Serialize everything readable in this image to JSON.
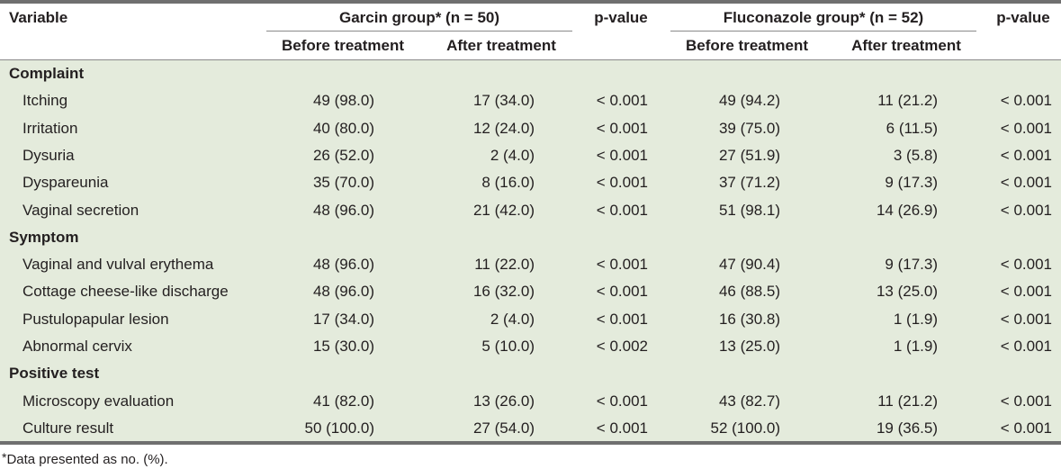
{
  "header": {
    "variable": "Variable",
    "garcin_group": "Garcin group* (n = 50)",
    "fluconazole_group": "Fluconazole group* (n = 52)",
    "pvalue_1": "p-value",
    "pvalue_2": "p-value",
    "before_1": "Before treatment",
    "after_1": "After treatment",
    "before_2": "Before treatment",
    "after_2": "After treatment"
  },
  "sections": [
    {
      "title": "Complaint",
      "rows": [
        {
          "variable": "Itching",
          "g_before": "49 (98.0)",
          "g_after": "17 (34.0)",
          "g_p": "< 0.001",
          "f_before": "49 (94.2)",
          "f_after": "11 (21.2)",
          "f_p": "< 0.001"
        },
        {
          "variable": "Irritation",
          "g_before": "40 (80.0)",
          "g_after": "12 (24.0)",
          "g_p": "< 0.001",
          "f_before": "39 (75.0)",
          "f_after": "6 (11.5)",
          "f_p": "< 0.001"
        },
        {
          "variable": "Dysuria",
          "g_before": "26 (52.0)",
          "g_after": "2 (4.0)",
          "g_p": "< 0.001",
          "f_before": "27 (51.9)",
          "f_after": "3 (5.8)",
          "f_p": "< 0.001"
        },
        {
          "variable": "Dyspareunia",
          "g_before": "35 (70.0)",
          "g_after": "8 (16.0)",
          "g_p": "< 0.001",
          "f_before": "37 (71.2)",
          "f_after": "9 (17.3)",
          "f_p": "< 0.001"
        },
        {
          "variable": "Vaginal secretion",
          "g_before": "48 (96.0)",
          "g_after": "21 (42.0)",
          "g_p": "< 0.001",
          "f_before": "51 (98.1)",
          "f_after": "14 (26.9)",
          "f_p": "< 0.001"
        }
      ]
    },
    {
      "title": "Symptom",
      "rows": [
        {
          "variable": "Vaginal and vulval erythema",
          "g_before": "48 (96.0)",
          "g_after": "11 (22.0)",
          "g_p": "< 0.001",
          "f_before": "47 (90.4)",
          "f_after": "9 (17.3)",
          "f_p": "< 0.001"
        },
        {
          "variable": "Cottage cheese-like discharge",
          "g_before": "48 (96.0)",
          "g_after": "16 (32.0)",
          "g_p": "< 0.001",
          "f_before": "46 (88.5)",
          "f_after": "13 (25.0)",
          "f_p": "< 0.001"
        },
        {
          "variable": "Pustulopapular lesion",
          "g_before": "17 (34.0)",
          "g_after": "2 (4.0)",
          "g_p": "< 0.001",
          "f_before": "16 (30.8)",
          "f_after": "1 (1.9)",
          "f_p": "< 0.001"
        },
        {
          "variable": "Abnormal cervix",
          "g_before": "15 (30.0)",
          "g_after": "5 (10.0)",
          "g_p": "< 0.002",
          "f_before": "13 (25.0)",
          "f_after": "1 (1.9)",
          "f_p": "< 0.001"
        }
      ]
    },
    {
      "title": "Positive test",
      "rows": [
        {
          "variable": "Microscopy evaluation",
          "g_before": "41 (82.0)",
          "g_after": "13 (26.0)",
          "g_p": "< 0.001",
          "f_before": "43 (82.7)",
          "f_after": "11 (21.2)",
          "f_p": "< 0.001"
        },
        {
          "variable": "Culture result",
          "g_before": "50 (100.0)",
          "g_after": "27 (54.0)",
          "g_p": "< 0.001",
          "f_before": "52 (100.0)",
          "f_after": "19 (36.5)",
          "f_p": "< 0.001"
        }
      ]
    }
  ],
  "footnote": {
    "mark": "*",
    "text": "Data presented as no. (%)."
  }
}
